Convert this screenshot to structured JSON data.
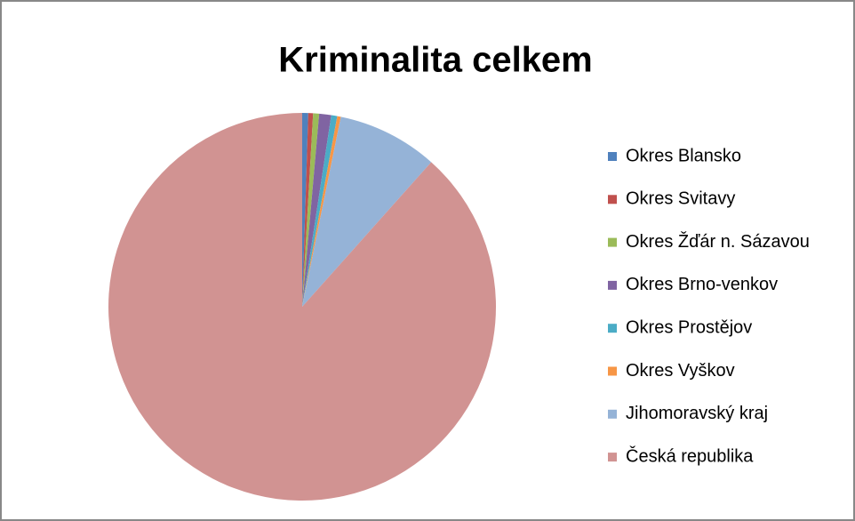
{
  "chart_data": {
    "type": "pie",
    "title": "Kriminalita celkem",
    "categories": [
      "Okres Blansko",
      "Okres Svitavy",
      "Okres Žďár n. Sázavou",
      "Okres Brno-venkov",
      "Okres Prostějov",
      "Okres Vyškov",
      "Jihomoravský kraj",
      "Česká republika"
    ],
    "values": [
      0.5,
      0.4,
      0.5,
      1.0,
      0.5,
      0.3,
      8.4,
      88.4
    ],
    "colors": [
      "#4f81bd",
      "#c0504d",
      "#9bbb59",
      "#8064a2",
      "#4bacc6",
      "#f79646",
      "#95b3d7",
      "#d19392"
    ],
    "legend": "right"
  }
}
